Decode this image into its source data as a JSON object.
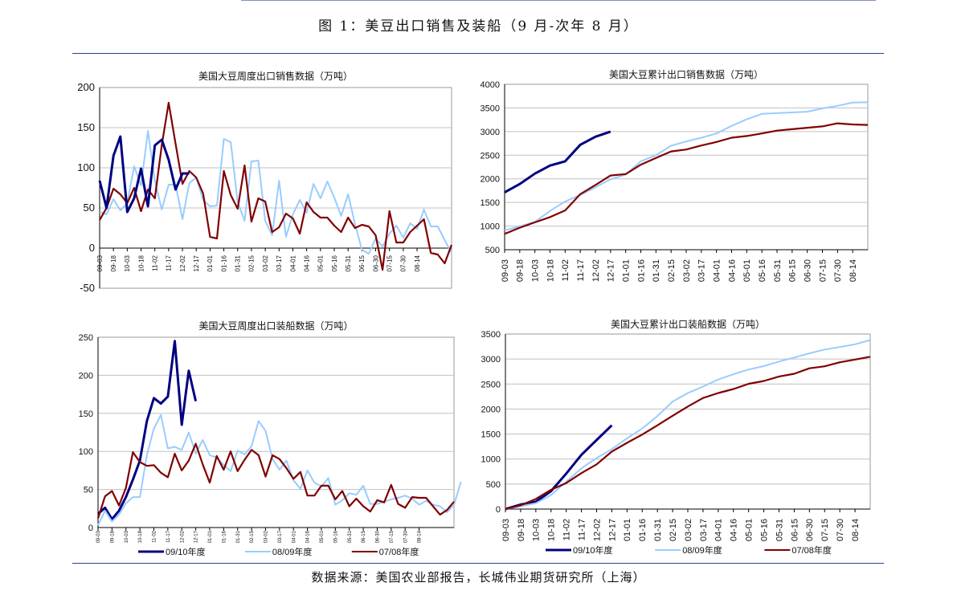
{
  "page": {
    "title": "图 1：美豆出口销售及装船（9 月-次年 8 月）",
    "source": "数据来源：美国农业部报告，长城伟业期货研究所（上海）"
  },
  "colors": {
    "s0910": "#000080",
    "s0809": "#99ccff",
    "s0708": "#800000",
    "grid": "#c0c0c0"
  },
  "chart_data": [
    {
      "type": "line",
      "title": "美国大豆周度出口销售数据（万吨）",
      "ylim": [
        -50,
        200
      ],
      "yticks": [
        "-50",
        "0",
        "50",
        "100",
        "150",
        "200"
      ],
      "grid": true,
      "legend": "none",
      "x_tick_labels": [
        "09-03",
        "09-18",
        "10-03",
        "10-18",
        "11-02",
        "11-17",
        "12-02",
        "12-17",
        "01-01",
        "01-16",
        "01-31",
        "02-15",
        "03-02",
        "03-17",
        "04-01",
        "04-16",
        "05-01",
        "05-16",
        "05-31",
        "06-15",
        "06-30",
        "07-15",
        "07-30",
        "08-14"
      ],
      "series": [
        {
          "color_key": "s0809",
          "values": [
            45,
            42,
            61,
            47,
            56,
            102,
            78,
            146,
            84,
            48,
            79,
            79,
            36,
            81,
            88,
            60,
            52,
            53,
            136,
            132,
            57,
            34,
            108,
            109,
            34,
            16,
            84,
            14,
            42,
            60,
            44,
            80,
            62,
            83,
            63,
            40,
            67,
            30,
            -2,
            -7,
            12,
            2,
            18,
            28,
            13,
            31,
            24,
            48,
            27,
            27,
            10,
            -6
          ]
        },
        {
          "color_key": "s0708",
          "values": [
            35,
            50,
            74,
            67,
            56,
            75,
            46,
            73,
            62,
            128,
            181,
            130,
            80,
            96,
            88,
            68,
            14,
            12,
            96,
            66,
            49,
            103,
            33,
            62,
            58,
            20,
            26,
            43,
            37,
            18,
            57,
            45,
            38,
            38,
            28,
            20,
            38,
            25,
            29,
            27,
            16,
            -27,
            46,
            7,
            7,
            20,
            28,
            36,
            -6,
            -8,
            -19,
            4
          ]
        },
        {
          "color_key": "s0910",
          "values": [
            84,
            50,
            115,
            139,
            45,
            62,
            99,
            52,
            128,
            135,
            110,
            73,
            93,
            93
          ]
        }
      ]
    },
    {
      "type": "line",
      "title": "美国大豆累计出口销售数据（万吨）",
      "ylim": [
        500,
        4000
      ],
      "yticks": [
        "500",
        "1000",
        "1500",
        "2000",
        "2500",
        "3000",
        "3500",
        "4000"
      ],
      "grid": true,
      "legend": "none",
      "x_tick_labels": [
        "09-03",
        "09-18",
        "10-03",
        "10-18",
        "11-02",
        "11-17",
        "12-02",
        "12-17",
        "01-01",
        "01-16",
        "01-31",
        "02-15",
        "03-02",
        "03-17",
        "04-01",
        "04-16",
        "05-01",
        "05-16",
        "05-31",
        "06-15",
        "06-30",
        "07-15",
        "07-30",
        "08-14"
      ],
      "series": [
        {
          "color_key": "s0809",
          "values": [
            910,
            995,
            1090,
            1320,
            1520,
            1660,
            1820,
            1990,
            2090,
            2370,
            2500,
            2700,
            2790,
            2870,
            2960,
            3120,
            3260,
            3375,
            3390,
            3405,
            3420,
            3490,
            3545,
            3615,
            3620
          ]
        },
        {
          "color_key": "s0708",
          "values": [
            835,
            965,
            1080,
            1190,
            1330,
            1675,
            1870,
            2070,
            2100,
            2300,
            2440,
            2580,
            2620,
            2705,
            2780,
            2870,
            2905,
            2960,
            3020,
            3050,
            3080,
            3110,
            3175,
            3150,
            3140
          ]
        },
        {
          "color_key": "s0910",
          "values": [
            1715,
            1890,
            2110,
            2280,
            2370,
            2720,
            2890,
            3000
          ]
        }
      ]
    },
    {
      "type": "line",
      "title": "美国大豆周度出口装船数据（万吨）",
      "ylim": [
        0,
        250
      ],
      "yticks": [
        "0",
        "50",
        "100",
        "150",
        "200",
        "250"
      ],
      "grid": true,
      "legend": "bottom",
      "x_tick_labels": [
        "09-03",
        "09-18",
        "10-03",
        "10-18",
        "11-02",
        "11-17",
        "12-02",
        "12-17",
        "01-01",
        "01-16",
        "01-31",
        "02-15",
        "03-02",
        "03-17",
        "04-01",
        "04-16",
        "05-01",
        "05-16",
        "05-31",
        "06-15",
        "06-30",
        "07-15",
        "07-30",
        "08-14"
      ],
      "series": [
        {
          "name": "09/10年度",
          "color_key": "s0910",
          "values": [
            18,
            26,
            11,
            22,
            40,
            63,
            88,
            140,
            170,
            163,
            172,
            245,
            135,
            206,
            166
          ]
        },
        {
          "name": "08/09年度",
          "color_key": "s0809",
          "values": [
            3,
            22,
            8,
            17,
            32,
            40,
            40,
            95,
            130,
            148,
            104,
            106,
            102,
            125,
            97,
            115,
            95,
            92,
            82,
            74,
            101,
            96,
            107,
            140,
            127,
            90,
            76,
            88,
            62,
            51,
            75,
            59,
            54,
            65,
            30,
            36,
            45,
            43,
            55,
            31,
            31,
            34,
            37,
            39,
            42,
            38,
            30,
            35,
            30,
            28,
            20,
            30,
            60
          ]
        },
        {
          "name": "07/08年度",
          "color_key": "s0708",
          "values": [
            12,
            41,
            48,
            29,
            52,
            99,
            86,
            81,
            82,
            72,
            66,
            97,
            75,
            88,
            110,
            83,
            59,
            94,
            76,
            100,
            74,
            89,
            102,
            95,
            67,
            95,
            90,
            78,
            64,
            73,
            42,
            42,
            55,
            55,
            37,
            48,
            28,
            38,
            28,
            21,
            36,
            33,
            56,
            31,
            26,
            40,
            39,
            39,
            28,
            17,
            23,
            34
          ]
        }
      ]
    },
    {
      "type": "line",
      "title": "美国大豆累计出口装船数据（万吨）",
      "ylim": [
        0,
        3500
      ],
      "yticks": [
        "0",
        "500",
        "1000",
        "1500",
        "2000",
        "2500",
        "3000",
        "3500"
      ],
      "grid": true,
      "legend": "bottom",
      "x_tick_labels": [
        "09-03",
        "09-18",
        "10-03",
        "10-18",
        "11-02",
        "11-17",
        "12-02",
        "12-17",
        "01-01",
        "01-16",
        "01-31",
        "02-15",
        "03-02",
        "03-17",
        "04-01",
        "04-16",
        "05-01",
        "05-16",
        "05-31",
        "06-15",
        "06-30",
        "07-15",
        "07-30",
        "08-14"
      ],
      "series": [
        {
          "name": "09/10年度",
          "color_key": "s0910",
          "values": [
            0,
            90,
            145,
            360,
            710,
            1085,
            1380,
            1675
          ]
        },
        {
          "name": "08/09年度",
          "color_key": "s0809",
          "values": [
            0,
            55,
            118,
            280,
            550,
            815,
            1020,
            1200,
            1415,
            1610,
            1860,
            2150,
            2320,
            2450,
            2590,
            2695,
            2790,
            2860,
            2950,
            3030,
            3115,
            3190,
            3240,
            3295,
            3380
          ]
        },
        {
          "name": "07/08年度",
          "color_key": "s0708",
          "values": [
            0,
            75,
            200,
            385,
            520,
            720,
            895,
            1150,
            1325,
            1490,
            1675,
            1865,
            2050,
            2220,
            2320,
            2400,
            2505,
            2560,
            2650,
            2705,
            2815,
            2855,
            2935,
            2990,
            3045
          ]
        }
      ]
    }
  ]
}
